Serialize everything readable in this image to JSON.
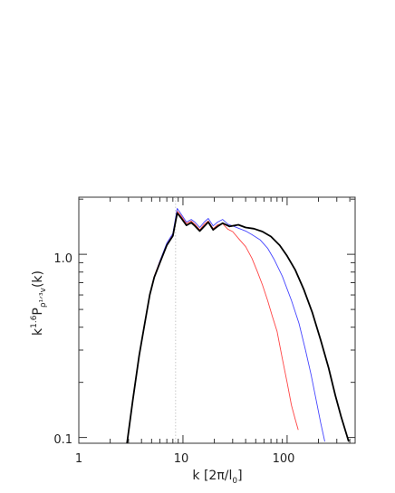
{
  "chart_data": {
    "type": "line",
    "title": "",
    "xlabel": {
      "main": "k  [2π/l",
      "sub": "0",
      "end": "]"
    },
    "ylabel": {
      "k": "k",
      "exp": "1.6",
      "P": "P",
      "sub": "ρ¹ᐟ³v",
      "end": "(k)"
    },
    "x_scale": "log",
    "y_scale": "log",
    "xlim": [
      1,
      450
    ],
    "ylim": [
      0.093,
      2.05
    ],
    "x_ticks": [
      {
        "v": 1,
        "label": "1"
      },
      {
        "v": 10,
        "label": "10"
      },
      {
        "v": 100,
        "label": "100"
      }
    ],
    "y_ticks": [
      {
        "v": 0.1,
        "label": "0.1"
      },
      {
        "v": 1.0,
        "label": "1.0"
      }
    ],
    "grid": false,
    "reference_line": {
      "x": 8.5,
      "style": "dotted",
      "color": "#bbbbbb"
    },
    "series": [
      {
        "color": "#ff4444",
        "width": 0.9,
        "points": [
          [
            2.9,
            0.093
          ],
          [
            3.3,
            0.16
          ],
          [
            3.8,
            0.28
          ],
          [
            4.3,
            0.42
          ],
          [
            4.8,
            0.6
          ],
          [
            5.3,
            0.76
          ],
          [
            6.0,
            0.92
          ],
          [
            7.0,
            1.13
          ],
          [
            8.0,
            1.28
          ],
          [
            8.8,
            1.72
          ],
          [
            9.6,
            1.62
          ],
          [
            10.8,
            1.47
          ],
          [
            12.0,
            1.52
          ],
          [
            13.0,
            1.46
          ],
          [
            14.5,
            1.36
          ],
          [
            16.0,
            1.46
          ],
          [
            17.5,
            1.52
          ],
          [
            19.5,
            1.38
          ],
          [
            21.5,
            1.45
          ],
          [
            24.0,
            1.47
          ],
          [
            27.0,
            1.37
          ],
          [
            30.0,
            1.33
          ],
          [
            35.0,
            1.2
          ],
          [
            40.0,
            1.1
          ],
          [
            46.0,
            0.95
          ],
          [
            52.0,
            0.8
          ],
          [
            58.0,
            0.68
          ],
          [
            65.0,
            0.56
          ],
          [
            72.0,
            0.46
          ],
          [
            80.0,
            0.38
          ],
          [
            90.0,
            0.27
          ],
          [
            100.0,
            0.2
          ],
          [
            110.0,
            0.15
          ],
          [
            120.0,
            0.125
          ],
          [
            128.0,
            0.11
          ]
        ]
      },
      {
        "color": "#4444ff",
        "width": 0.9,
        "points": [
          [
            2.9,
            0.093
          ],
          [
            3.3,
            0.16
          ],
          [
            3.8,
            0.28
          ],
          [
            4.3,
            0.42
          ],
          [
            4.8,
            0.6
          ],
          [
            5.3,
            0.75
          ],
          [
            6.0,
            0.92
          ],
          [
            7.0,
            1.15
          ],
          [
            8.0,
            1.3
          ],
          [
            8.8,
            1.78
          ],
          [
            9.6,
            1.66
          ],
          [
            10.8,
            1.5
          ],
          [
            12.0,
            1.55
          ],
          [
            13.0,
            1.5
          ],
          [
            14.5,
            1.4
          ],
          [
            16.0,
            1.5
          ],
          [
            17.5,
            1.57
          ],
          [
            19.5,
            1.43
          ],
          [
            21.5,
            1.5
          ],
          [
            24.0,
            1.55
          ],
          [
            27.0,
            1.46
          ],
          [
            30.0,
            1.43
          ],
          [
            35.0,
            1.38
          ],
          [
            40.0,
            1.34
          ],
          [
            46.0,
            1.28
          ],
          [
            55.0,
            1.2
          ],
          [
            65.0,
            1.08
          ],
          [
            75.0,
            0.94
          ],
          [
            90.0,
            0.76
          ],
          [
            110.0,
            0.56
          ],
          [
            130.0,
            0.42
          ],
          [
            150.0,
            0.3
          ],
          [
            170.0,
            0.22
          ],
          [
            190.0,
            0.16
          ],
          [
            210.0,
            0.12
          ],
          [
            230.0,
            0.095
          ]
        ]
      },
      {
        "color": "#000000",
        "width": 1.8,
        "points": [
          [
            2.9,
            0.093
          ],
          [
            3.3,
            0.16
          ],
          [
            3.8,
            0.28
          ],
          [
            4.3,
            0.42
          ],
          [
            4.8,
            0.6
          ],
          [
            5.3,
            0.75
          ],
          [
            6.0,
            0.9
          ],
          [
            7.0,
            1.12
          ],
          [
            8.0,
            1.26
          ],
          [
            8.8,
            1.68
          ],
          [
            9.6,
            1.58
          ],
          [
            10.8,
            1.44
          ],
          [
            12.0,
            1.49
          ],
          [
            13.0,
            1.43
          ],
          [
            14.5,
            1.34
          ],
          [
            16.0,
            1.42
          ],
          [
            17.5,
            1.5
          ],
          [
            19.5,
            1.36
          ],
          [
            21.5,
            1.42
          ],
          [
            24.0,
            1.48
          ],
          [
            28.0,
            1.42
          ],
          [
            34.0,
            1.45
          ],
          [
            40.0,
            1.4
          ],
          [
            48.0,
            1.38
          ],
          [
            58.0,
            1.33
          ],
          [
            70.0,
            1.25
          ],
          [
            85.0,
            1.12
          ],
          [
            100.0,
            0.98
          ],
          [
            120.0,
            0.82
          ],
          [
            145.0,
            0.64
          ],
          [
            175.0,
            0.48
          ],
          [
            210.0,
            0.34
          ],
          [
            250.0,
            0.24
          ],
          [
            290.0,
            0.17
          ],
          [
            330.0,
            0.13
          ],
          [
            370.0,
            0.105
          ],
          [
            390.0,
            0.095
          ]
        ]
      }
    ]
  }
}
